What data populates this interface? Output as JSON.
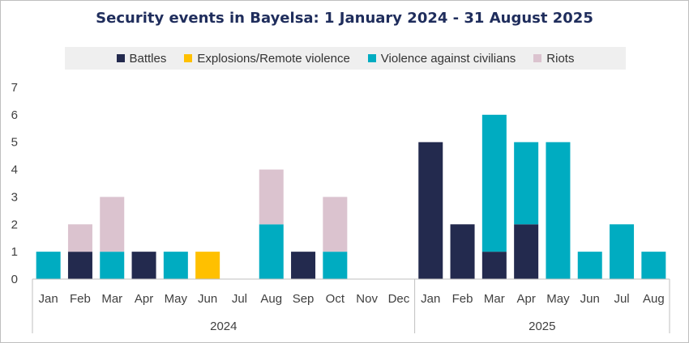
{
  "chart_data": {
    "type": "bar",
    "stacked": true,
    "title": "Security events in Bayelsa: 1 January 2024 - 31 August 2025",
    "xlabel": "",
    "ylabel": "",
    "ylim": [
      0,
      7
    ],
    "yticks": [
      "0",
      "1",
      "2",
      "3",
      "4",
      "5",
      "6",
      "7"
    ],
    "legend_position": "top",
    "groups": [
      {
        "label": "2024",
        "count": 12
      },
      {
        "label": "2025",
        "count": 8
      }
    ],
    "categories": [
      "Jan",
      "Feb",
      "Mar",
      "Apr",
      "May",
      "Jun",
      "Jul",
      "Aug",
      "Sep",
      "Oct",
      "Nov",
      "Dec",
      "Jan",
      "Feb",
      "Mar",
      "Apr",
      "May",
      "Jun",
      "Jul",
      "Aug"
    ],
    "series": [
      {
        "name": "Battles",
        "color": "#232a4e",
        "values": [
          0,
          1,
          0,
          1,
          0,
          0,
          0,
          0,
          1,
          0,
          0,
          0,
          5,
          2,
          1,
          2,
          0,
          0,
          0,
          0
        ]
      },
      {
        "name": "Explosions/Remote violence",
        "color": "#ffc000",
        "values": [
          0,
          0,
          0,
          0,
          0,
          1,
          0,
          0,
          0,
          0,
          0,
          0,
          0,
          0,
          0,
          0,
          0,
          0,
          0,
          0
        ]
      },
      {
        "name": "Violence against civilians",
        "color": "#00acc1",
        "values": [
          1,
          0,
          1,
          0,
          1,
          0,
          0,
          2,
          0,
          1,
          0,
          0,
          0,
          0,
          5,
          3,
          5,
          1,
          2,
          1
        ]
      },
      {
        "name": "Riots",
        "color": "#dbc3cf",
        "values": [
          0,
          1,
          2,
          0,
          0,
          0,
          0,
          2,
          0,
          2,
          0,
          0,
          0,
          0,
          0,
          0,
          0,
          0,
          0,
          0
        ]
      }
    ]
  }
}
